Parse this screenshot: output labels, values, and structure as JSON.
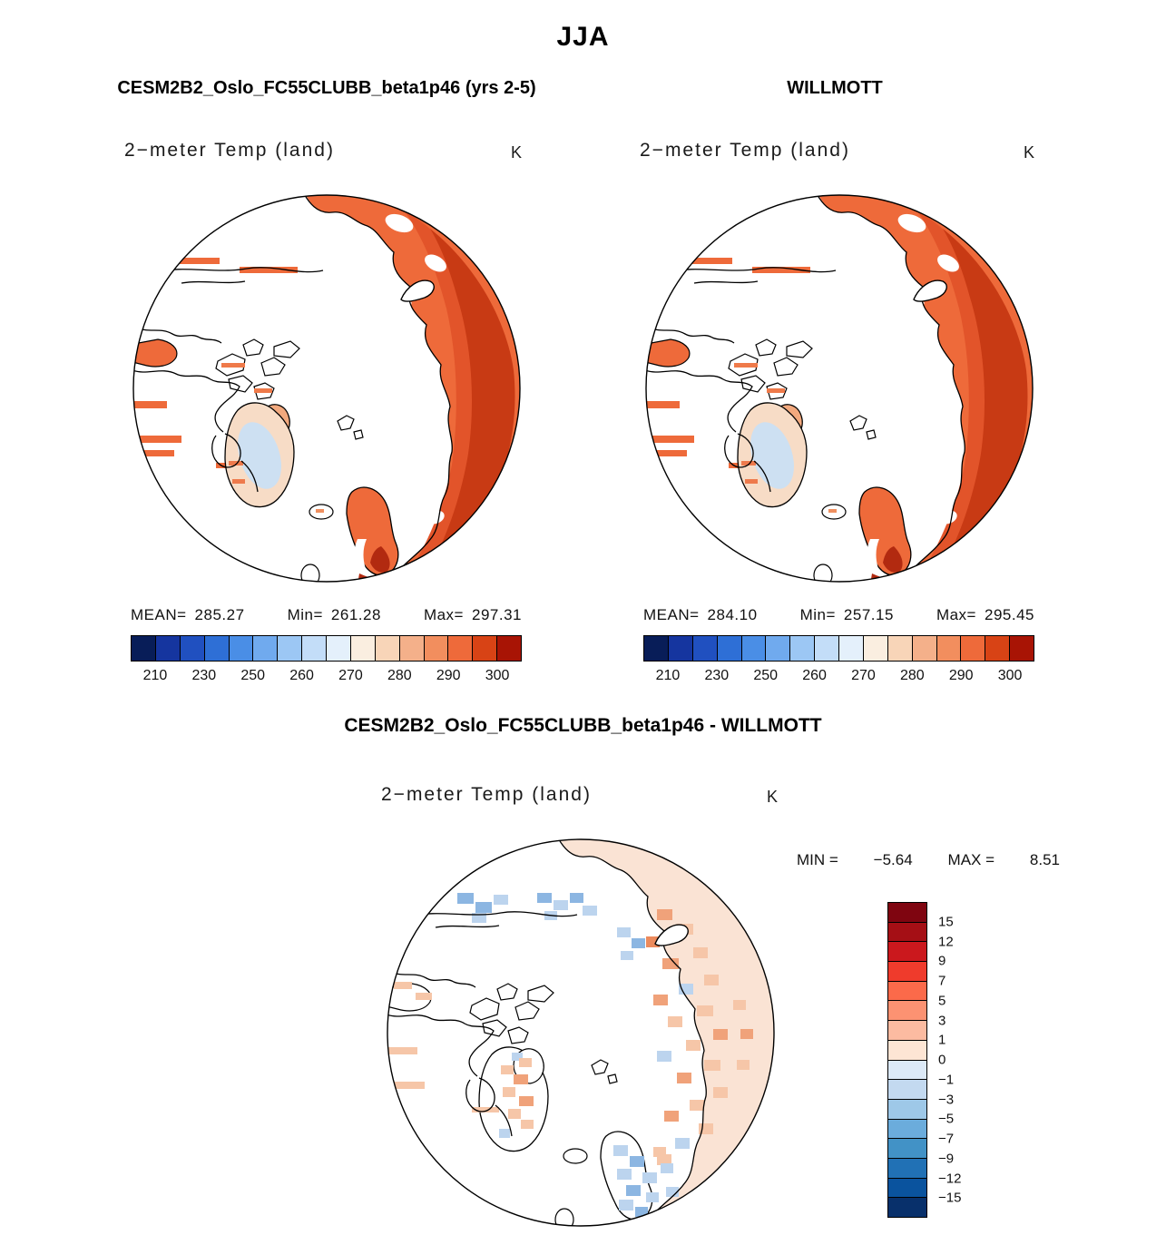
{
  "page": {
    "season_title": "JJA",
    "background": "#ffffff"
  },
  "panels": [
    {
      "id": "model",
      "title": "CESM2B2_Oslo_FC55CLUBB_beta1p46 (yrs 2-5)",
      "variable": "2−meter Temp (land)",
      "units": "K",
      "stats": {
        "mean_label": "MEAN=",
        "mean": "285.27",
        "min_label": "Min=",
        "min": "261.28",
        "max_label": "Max=",
        "max": "297.31"
      },
      "colorbar": {
        "ticks": [
          "210",
          "230",
          "250",
          "260",
          "270",
          "280",
          "290",
          "300"
        ]
      }
    },
    {
      "id": "observation",
      "title": "WILLMOTT",
      "variable": "2−meter Temp (land)",
      "units": "K",
      "stats": {
        "mean_label": "MEAN=",
        "mean": "284.10",
        "min_label": "Min=",
        "min": "257.15",
        "max_label": "Max=",
        "max": "295.45"
      },
      "colorbar": {
        "ticks": [
          "210",
          "230",
          "250",
          "260",
          "270",
          "280",
          "290",
          "300"
        ]
      }
    },
    {
      "id": "difference",
      "title": "CESM2B2_Oslo_FC55CLUBB_beta1p46 - WILLMOTT",
      "variable": "2−meter Temp (land)",
      "units": "K",
      "stats": {
        "min_label": "MIN =",
        "min": "−5.64",
        "max_label": "MAX =",
        "max": "8.51"
      },
      "colorbar": {
        "labels": [
          "15",
          "12",
          "9",
          "7",
          "5",
          "3",
          "1",
          "0",
          "−1",
          "−3",
          "−5",
          "−7",
          "−9",
          "−12",
          "−15"
        ]
      }
    }
  ],
  "colors": {
    "temp_scale": [
      "#081d58",
      "#15359f",
      "#2050c0",
      "#2e6fd6",
      "#4a8ee6",
      "#70aaee",
      "#9cc7f4",
      "#c3ddf8",
      "#e4f0fb",
      "#faeee0",
      "#f8d5b8",
      "#f4b08a",
      "#f28e5e",
      "#ee6a3a",
      "#d84315",
      "#a81405"
    ],
    "diff_scale": [
      "#7f0510",
      "#a50f15",
      "#cb181d",
      "#ef3b2c",
      "#fb6a4a",
      "#fc9272",
      "#fcbba1",
      "#fde5d4",
      "#dce9f7",
      "#c3d9f0",
      "#9ec8e8",
      "#6bacdc",
      "#4292c6",
      "#2171b5",
      "#0a539e",
      "#08306b"
    ]
  },
  "chart_data": [
    {
      "type": "heatmap",
      "subtype": "polar_stereographic_map",
      "panel": "model",
      "season": "JJA",
      "title": "CESM2B2_Oslo_FC55CLUBB_beta1p46 (yrs 2-5)",
      "variable": "2−meter Temp (land)",
      "units": "K",
      "stats": {
        "mean": 285.27,
        "min": 261.28,
        "max": 297.31
      },
      "colorbar_tick_labels": [
        210,
        230,
        250,
        260,
        270,
        280,
        290,
        300
      ],
      "colorbar_levels": [
        210,
        220,
        230,
        240,
        250,
        255,
        260,
        265,
        270,
        275,
        280,
        285,
        290,
        295,
        300
      ],
      "legend_position": "bottom"
    },
    {
      "type": "heatmap",
      "subtype": "polar_stereographic_map",
      "panel": "observation",
      "season": "JJA",
      "title": "WILLMOTT",
      "variable": "2−meter Temp (land)",
      "units": "K",
      "stats": {
        "mean": 284.1,
        "min": 257.15,
        "max": 295.45
      },
      "colorbar_tick_labels": [
        210,
        230,
        250,
        260,
        270,
        280,
        290,
        300
      ],
      "colorbar_levels": [
        210,
        220,
        230,
        240,
        250,
        255,
        260,
        265,
        270,
        275,
        280,
        285,
        290,
        295,
        300
      ],
      "legend_position": "bottom"
    },
    {
      "type": "heatmap",
      "subtype": "polar_stereographic_map",
      "panel": "difference",
      "season": "JJA",
      "title": "CESM2B2_Oslo_FC55CLUBB_beta1p46 - WILLMOTT",
      "variable": "2−meter Temp (land)",
      "units": "K",
      "stats": {
        "min": -5.64,
        "max": 8.51
      },
      "colorbar_tick_labels": [
        15,
        12,
        9,
        7,
        5,
        3,
        1,
        0,
        -1,
        -3,
        -5,
        -7,
        -9,
        -12,
        -15
      ],
      "legend_position": "right"
    }
  ]
}
